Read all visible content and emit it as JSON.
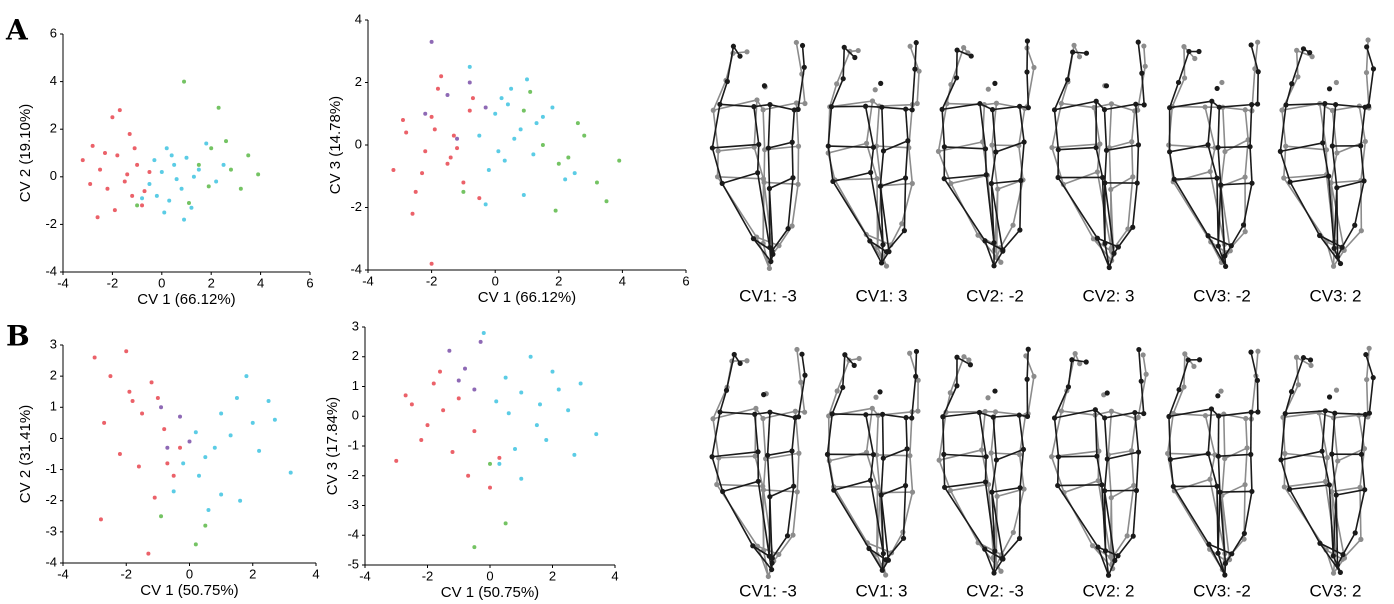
{
  "panel_labels": [
    "A",
    "B"
  ],
  "shape_captions": [
    [
      "CV1: -3",
      "CV1: 3",
      "CV2: -2",
      "CV2: 3",
      "CV3: -2",
      "CV3: 2"
    ],
    [
      "CV1: -3",
      "CV1: 3",
      "CV2: -3",
      "CV2: 2",
      "CV3: -2",
      "CV3: 2"
    ]
  ],
  "chart_data": [
    {
      "type": "scatter",
      "xlabel": "CV 1 (66.12%)",
      "ylabel": "CV 2 (19.10%)",
      "xlim": [
        -4,
        6
      ],
      "xticks": [
        -4,
        -2,
        0,
        2,
        4,
        6
      ],
      "ylim": [
        -4,
        6
      ],
      "yticks": [
        -4,
        -2,
        0,
        2,
        4,
        6
      ],
      "series": [
        {
          "color": "#e8454f",
          "x": [
            -3.2,
            -2.8,
            -2.5,
            -2.2,
            -2,
            -1.8,
            -1.5,
            -1.3,
            -1,
            -0.8,
            -2.6,
            -1.7,
            -1.2,
            -0.5,
            -2.9,
            -2.3,
            -1.9,
            -1.1,
            -0.7,
            -1.4
          ],
          "values": [
            0.7,
            1.3,
            0.3,
            -0.5,
            2.5,
            0.9,
            -0.2,
            1.8,
            0.5,
            -1.2,
            -1.7,
            2.8,
            -0.8,
            0.2,
            -0.3,
            1.0,
            -1.4,
            1.2,
            -0.6,
            0.1
          ]
        },
        {
          "color": "#3ec3e0",
          "x": [
            -0.5,
            0,
            0.3,
            0.5,
            0.8,
            1,
            1.2,
            1.5,
            0.2,
            -0.2,
            0.6,
            1.8,
            2.2,
            0.9,
            0.1,
            -0.8,
            1.3,
            0.4,
            2.5,
            -0.3
          ],
          "values": [
            -0.3,
            0.2,
            -1,
            0.5,
            -0.5,
            0.8,
            -1.3,
            0.3,
            1.2,
            -0.8,
            -0.1,
            1.4,
            -0.2,
            -1.8,
            -1.5,
            -0.9,
            0,
            0.9,
            0.5,
            0.7
          ]
        },
        {
          "color": "#5cb848",
          "x": [
            1.5,
            2,
            2.3,
            2.8,
            3.2,
            3.5,
            1.9,
            2.6,
            3.9,
            1.1,
            -1,
            0.9
          ],
          "values": [
            0.5,
            1.2,
            2.9,
            0.3,
            -0.5,
            0.9,
            -0.4,
            1.5,
            0.1,
            -1.1,
            -1.2,
            4.0
          ]
        }
      ]
    },
    {
      "type": "scatter",
      "xlabel": "CV 1 (66.12%)",
      "ylabel": "CV 3 (14.78%)",
      "xlim": [
        -4,
        6
      ],
      "xticks": [
        -4,
        -2,
        0,
        2,
        4,
        6
      ],
      "ylim": [
        -4,
        4
      ],
      "yticks": [
        -4,
        -2,
        0,
        2,
        4
      ],
      "series": [
        {
          "color": "#e8454f",
          "x": [
            -3.2,
            -2.8,
            -2.5,
            -2.2,
            -2,
            -1.8,
            -1.5,
            -1.3,
            -1,
            -0.8,
            -2.6,
            -1.7,
            -1.2,
            -0.5,
            -2.9,
            -2.3,
            -1.9,
            -2,
            -0.7,
            -1.4
          ],
          "values": [
            -0.8,
            0.4,
            -1.5,
            -0.2,
            0.9,
            1.8,
            -0.6,
            0.3,
            -1.2,
            1.1,
            -2.2,
            2.2,
            -0.1,
            -1.7,
            0.8,
            -0.9,
            0.5,
            -3.8,
            1.5,
            -0.4
          ]
        },
        {
          "color": "#3ec3e0",
          "x": [
            -0.5,
            0,
            0.3,
            0.5,
            0.8,
            1,
            1.2,
            1.5,
            0.2,
            -0.2,
            0.6,
            1.8,
            2.2,
            0.9,
            0.1,
            -0.8,
            1.3,
            0.4,
            2.5,
            -0.3
          ],
          "values": [
            0.3,
            1,
            -0.5,
            1.8,
            0.5,
            2.1,
            -0.3,
            0.9,
            1.5,
            -0.8,
            0.2,
            1.2,
            -1.1,
            -1.6,
            -0.2,
            2.5,
            0.7,
            1.3,
            -0.9,
            -1.9
          ]
        },
        {
          "color": "#5cb848",
          "x": [
            1.5,
            2,
            2.3,
            2.8,
            3.2,
            3.5,
            1.9,
            2.6,
            3.9,
            1.1,
            -1,
            0.9
          ],
          "values": [
            0,
            -0.6,
            -0.4,
            0.3,
            -1.2,
            -1.8,
            -2.1,
            0.7,
            -0.5,
            1.7,
            -1.5,
            1.1
          ]
        },
        {
          "color": "#7a4fa8",
          "x": [
            -2,
            -1.5,
            -0.8,
            -0.3,
            -1.2,
            -2.2
          ],
          "values": [
            3.3,
            1.6,
            2,
            1.2,
            0.2,
            1.0
          ]
        }
      ]
    },
    {
      "type": "scatter",
      "xlabel": "CV 1 (50.75%)",
      "ylabel": "CV 2 (31.41%)",
      "xlim": [
        -4,
        4
      ],
      "xticks": [
        -4,
        -2,
        0,
        2,
        4
      ],
      "ylim": [
        -4,
        3
      ],
      "yticks": [
        -4,
        -3,
        -2,
        -1,
        0,
        1,
        2,
        3
      ],
      "series": [
        {
          "color": "#e8454f",
          "x": [
            -3,
            -2.5,
            -2,
            -1.8,
            -1.5,
            -1.2,
            -1,
            -0.8,
            -2.2,
            -1.6,
            -0.5,
            -2.8,
            -1.3,
            -0.3,
            -2.7,
            -1.9,
            -0.7,
            -1.1
          ],
          "values": [
            2.6,
            2.0,
            2.8,
            1.2,
            0.8,
            1.8,
            1.3,
            0.3,
            -0.5,
            -0.9,
            -1.2,
            -2.6,
            -3.7,
            -0.3,
            0.5,
            1.5,
            -0.8,
            -1.9
          ]
        },
        {
          "color": "#3ec3e0",
          "x": [
            0.2,
            0.5,
            1,
            1.5,
            2,
            2.5,
            3.2,
            0.8,
            1.3,
            1.8,
            0.3,
            -0.2,
            2.2,
            2.7,
            1,
            0.6,
            -0.5,
            1.6
          ],
          "values": [
            0.2,
            -0.6,
            0.8,
            1.3,
            0.5,
            1.2,
            -1.1,
            -0.3,
            0.1,
            2.0,
            -1.2,
            -0.8,
            -0.4,
            0.6,
            -1.8,
            -2.3,
            -1.7,
            -2.0
          ]
        },
        {
          "color": "#7a4fa8",
          "x": [
            -0.3,
            -0.7,
            0,
            -0.9
          ],
          "values": [
            0.7,
            -0.3,
            -0.1,
            1.0
          ]
        },
        {
          "color": "#5cb848",
          "x": [
            -0.9,
            0.2,
            0.5
          ],
          "values": [
            -2.5,
            -3.4,
            -2.8
          ]
        }
      ]
    },
    {
      "type": "scatter",
      "xlabel": "CV 1 (50.75%)",
      "ylabel": "CV 3 (17.84%)",
      "xlim": [
        -4,
        4
      ],
      "xticks": [
        -4,
        -2,
        0,
        2,
        4
      ],
      "ylim": [
        -5,
        3
      ],
      "yticks": [
        -5,
        -4,
        -3,
        -2,
        -1,
        0,
        1,
        2,
        3
      ],
      "series": [
        {
          "color": "#e8454f",
          "x": [
            -3,
            -2.5,
            -2,
            -1.8,
            -1.5,
            -1.2,
            -1,
            -0.5,
            -2.2,
            -1.6,
            -0.7,
            -2.7,
            0,
            0.3
          ],
          "values": [
            -1.5,
            0.4,
            -0.3,
            1.1,
            0.2,
            -1.2,
            0.6,
            -0.5,
            -0.8,
            1.5,
            -2.0,
            0.7,
            -2.4,
            -1.4
          ]
        },
        {
          "color": "#3ec3e0",
          "x": [
            0.2,
            0.5,
            1,
            1.5,
            2,
            2.5,
            3.4,
            0.8,
            1.3,
            1.8,
            0.3,
            -0.2,
            2.2,
            2.7,
            1,
            0.6,
            1.6,
            2.9
          ],
          "values": [
            0.5,
            1.3,
            0.8,
            -0.3,
            1.5,
            0.2,
            -0.6,
            -1.1,
            2.0,
            -0.8,
            -1.6,
            2.8,
            0.9,
            -1.3,
            -2.1,
            0.1,
            0.4,
            1.1
          ]
        },
        {
          "color": "#7a4fa8",
          "x": [
            -1.3,
            -0.8,
            -0.5,
            -1,
            -0.3
          ],
          "values": [
            2.2,
            1.6,
            0.9,
            1.2,
            2.5
          ]
        },
        {
          "color": "#5cb848",
          "x": [
            -0.5,
            0.5,
            0
          ],
          "values": [
            -4.4,
            -3.6,
            -1.6
          ]
        }
      ]
    }
  ]
}
